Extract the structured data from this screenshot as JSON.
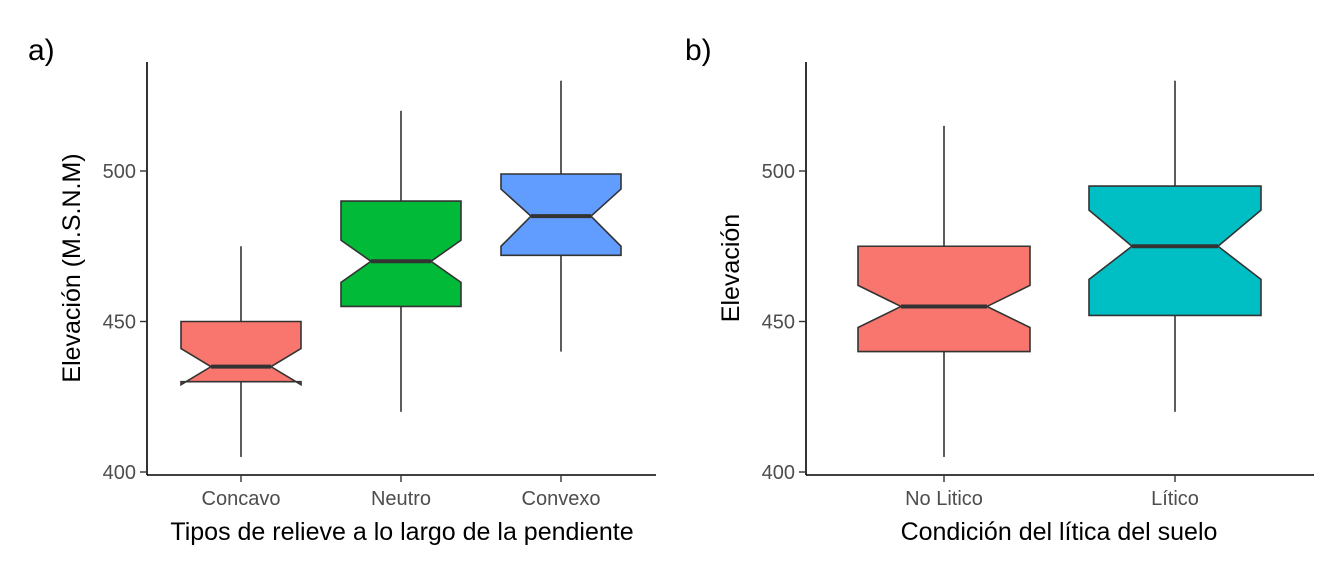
{
  "chart_data": [
    {
      "type": "boxplot",
      "notched": true,
      "panel_tag": "a)",
      "xlabel": "Tipos de relieve a lo largo de la pendiente",
      "ylabel": "Elevación (M.S.N.M)",
      "ylim": [
        400,
        533
      ],
      "yticks": [
        400,
        450,
        500
      ],
      "ytick_labels": [
        "400",
        "450",
        "500"
      ],
      "grid": false,
      "categories": [
        "Concavo",
        "Neutro",
        "Convexo"
      ],
      "boxes": [
        {
          "label": "Concavo",
          "color": "#F8766D",
          "whisker_low": 405,
          "q1": 430,
          "median": 435,
          "q3": 450,
          "whisker_high": 475,
          "notch_low": 429,
          "notch_high": 441
        },
        {
          "label": "Neutro",
          "color": "#00BA38",
          "whisker_low": 420,
          "q1": 455,
          "median": 470,
          "q3": 490,
          "whisker_high": 520,
          "notch_low": 463,
          "notch_high": 477
        },
        {
          "label": "Convexo",
          "color": "#619CFF",
          "whisker_low": 440,
          "q1": 472,
          "median": 485,
          "q3": 499,
          "whisker_high": 530,
          "notch_low": 475,
          "notch_high": 494
        }
      ]
    },
    {
      "type": "boxplot",
      "notched": true,
      "panel_tag": "b)",
      "xlabel": "Condición del lítica del suelo",
      "ylabel": "Elevación",
      "ylim": [
        400,
        533
      ],
      "yticks": [
        400,
        450,
        500
      ],
      "ytick_labels": [
        "400",
        "450",
        "500"
      ],
      "grid": false,
      "categories": [
        "No Litico",
        "Lítico"
      ],
      "boxes": [
        {
          "label": "No Litico",
          "color": "#F8766D",
          "whisker_low": 405,
          "q1": 440,
          "median": 455,
          "q3": 475,
          "whisker_high": 515,
          "notch_low": 448,
          "notch_high": 462
        },
        {
          "label": "Lítico",
          "color": "#00BFC4",
          "whisker_low": 420,
          "q1": 452,
          "median": 475,
          "q3": 495,
          "whisker_high": 530,
          "notch_low": 464,
          "notch_high": 487
        }
      ]
    }
  ]
}
